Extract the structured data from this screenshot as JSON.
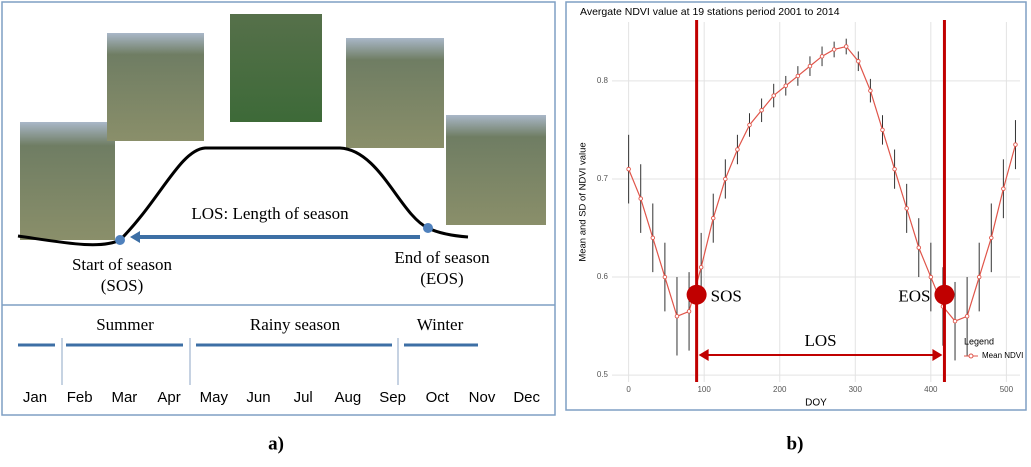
{
  "panel_a": {
    "los": "LOS: Length of season",
    "sos": [
      "Start of season",
      "(SOS)"
    ],
    "eos": [
      "End of season",
      "(EOS)"
    ],
    "seasons": [
      "Summer",
      "Rainy season",
      "Winter"
    ],
    "months": [
      "Jan",
      "Feb",
      "Mar",
      "Apr",
      "May",
      "Jun",
      "Jul",
      "Aug",
      "Sep",
      "Oct",
      "Nov",
      "Dec"
    ]
  },
  "captions": [
    "a)",
    "b)"
  ],
  "chart_data": {
    "type": "line",
    "title": "Avergate NDVI value at 19 stations period 2001 to 2014",
    "x_label": "DOY",
    "y_label": "Mean and SD of NDVI value",
    "x": [
      0,
      16,
      32,
      48,
      64,
      80,
      96,
      112,
      128,
      144,
      160,
      176,
      192,
      208,
      224,
      240,
      256,
      272,
      288,
      304,
      320,
      336,
      352,
      368,
      384,
      400,
      416,
      432,
      448,
      464,
      480,
      496,
      512
    ],
    "series": [
      {
        "name": "Mean NDVI",
        "color": "#e0554a",
        "values": [
          0.71,
          0.68,
          0.64,
          0.6,
          0.56,
          0.565,
          0.61,
          0.66,
          0.7,
          0.73,
          0.755,
          0.77,
          0.785,
          0.795,
          0.805,
          0.815,
          0.825,
          0.832,
          0.835,
          0.82,
          0.79,
          0.75,
          0.71,
          0.67,
          0.63,
          0.6,
          0.57,
          0.555,
          0.56,
          0.6,
          0.64,
          0.69,
          0.735
        ],
        "errors": [
          0.035,
          0.035,
          0.035,
          0.035,
          0.04,
          0.04,
          0.035,
          0.025,
          0.02,
          0.015,
          0.012,
          0.012,
          0.012,
          0.01,
          0.01,
          0.01,
          0.01,
          0.008,
          0.008,
          0.01,
          0.012,
          0.015,
          0.02,
          0.025,
          0.03,
          0.035,
          0.04,
          0.04,
          0.04,
          0.035,
          0.035,
          0.03,
          0.025
        ]
      }
    ],
    "xlim": [
      -22,
      518
    ],
    "ylim": [
      0.493,
      0.86
    ],
    "xticks": [
      0,
      100,
      200,
      300,
      400,
      500
    ],
    "yticks": [
      0.5,
      0.6,
      0.7,
      0.8
    ],
    "grid": true,
    "legend": {
      "title": "Legend",
      "position": "right"
    },
    "vlines": [
      {
        "x": 90,
        "y": 0.582,
        "label": "SOS"
      },
      {
        "x": 418,
        "y": 0.582,
        "label": "EOS"
      }
    ],
    "vline_color": "#c00000",
    "span_label": "LOS"
  }
}
